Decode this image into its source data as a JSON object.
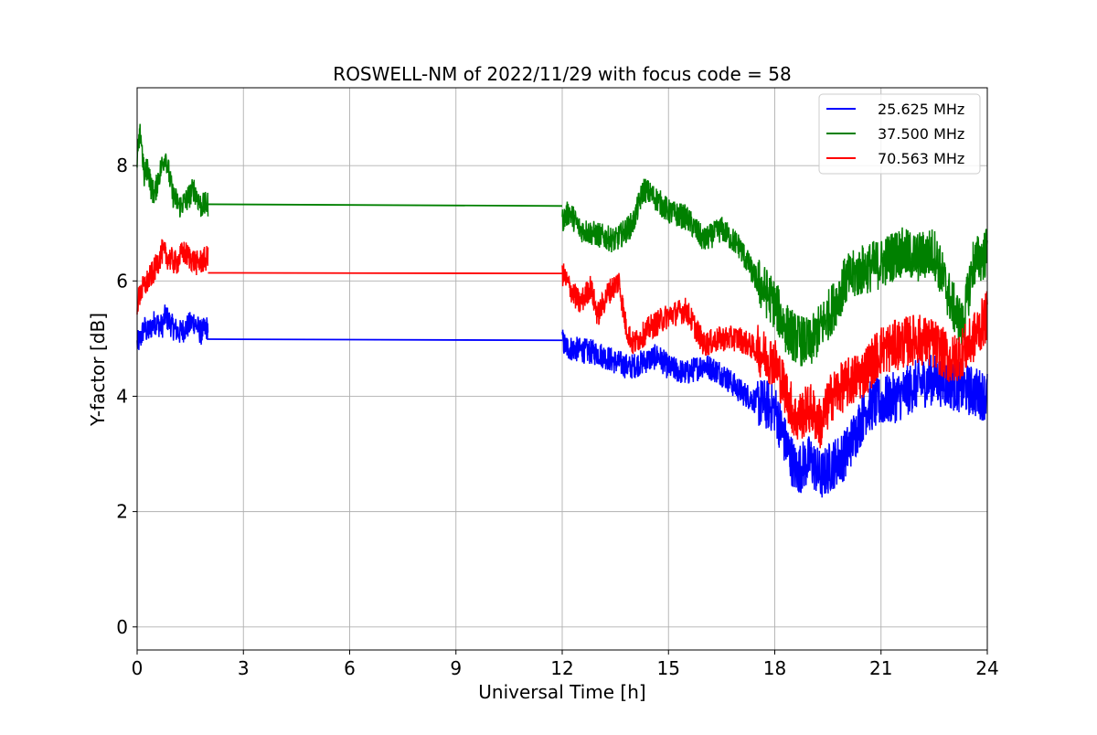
{
  "chart_data": {
    "type": "line",
    "title": "ROSWELL-NM of 2022/11/29 with focus code = 58",
    "xlabel": "Universal Time [h]",
    "ylabel": "Y-factor [dB]",
    "xlim": [
      0,
      24
    ],
    "ylim": [
      -0.4,
      9.35
    ],
    "xticks": [
      0,
      3,
      6,
      9,
      12,
      15,
      18,
      21,
      24
    ],
    "xtick_labels": [
      "0",
      "3",
      "6",
      "9",
      "12",
      "15",
      "18",
      "21",
      "24"
    ],
    "yticks": [
      0,
      2,
      4,
      6,
      8
    ],
    "ytick_labels": [
      "0",
      "2",
      "4",
      "6",
      "8"
    ],
    "grid": true,
    "legend_position": "top-right",
    "series": [
      {
        "name": "25.625 MHz",
        "color": "#0000ff",
        "x": [
          0,
          0.1,
          0.2,
          0.3,
          0.5,
          0.7,
          0.8,
          1.0,
          1.2,
          1.4,
          1.6,
          1.8,
          2.0,
          12.0,
          12.1,
          12.5,
          13.0,
          13.5,
          13.9,
          14.3,
          14.7,
          15.0,
          15.5,
          16.0,
          16.5,
          17.0,
          17.5,
          18.0,
          18.3,
          18.6,
          19.0,
          19.3,
          19.6,
          20.0,
          20.3,
          20.6,
          21.0,
          21.5,
          22.0,
          22.5,
          23.0,
          23.5,
          24.0
        ],
        "y": [
          4.9,
          5.0,
          5.2,
          5.1,
          5.3,
          5.2,
          5.4,
          5.2,
          5.1,
          5.2,
          5.3,
          5.1,
          5.2,
          4.97,
          4.85,
          4.8,
          4.75,
          4.6,
          4.5,
          4.6,
          4.7,
          4.5,
          4.4,
          4.55,
          4.4,
          4.1,
          3.9,
          3.8,
          3.2,
          2.7,
          2.9,
          2.6,
          2.8,
          3.0,
          3.4,
          3.8,
          3.9,
          4.0,
          4.2,
          4.3,
          4.2,
          4.1,
          4.0
        ],
        "flat_segment": {
          "x": [
            2.0,
            12.0
          ],
          "y": [
            4.99,
            4.97
          ]
        }
      },
      {
        "name": "37.500 MHz",
        "color": "#008000",
        "x": [
          0,
          0.1,
          0.2,
          0.3,
          0.4,
          0.5,
          0.6,
          0.8,
          1.0,
          1.2,
          1.4,
          1.6,
          1.8,
          2.0,
          12.0,
          12.2,
          12.5,
          13.0,
          13.5,
          14.0,
          14.3,
          14.7,
          15.0,
          15.5,
          16.0,
          16.5,
          17.0,
          17.5,
          18.0,
          18.3,
          18.6,
          19.0,
          19.3,
          19.6,
          20.0,
          20.5,
          21.0,
          21.5,
          22.0,
          22.5,
          23.0,
          23.3,
          23.6,
          24.0
        ],
        "y": [
          8.1,
          8.6,
          7.8,
          8.0,
          7.6,
          7.5,
          7.8,
          8.2,
          7.5,
          7.3,
          7.4,
          7.6,
          7.3,
          7.33,
          7.05,
          7.2,
          6.9,
          6.8,
          6.7,
          7.0,
          7.6,
          7.4,
          7.2,
          7.1,
          6.7,
          6.9,
          6.6,
          6.0,
          5.6,
          5.2,
          5.0,
          4.9,
          5.2,
          5.5,
          6.0,
          6.2,
          6.3,
          6.5,
          6.4,
          6.5,
          5.6,
          5.2,
          6.3,
          6.5
        ],
        "flat_segment": {
          "x": [
            2.0,
            12.0
          ],
          "y": [
            7.33,
            7.3
          ]
        }
      },
      {
        "name": "70.563 MHz",
        "color": "#ff0000",
        "x": [
          0,
          0.1,
          0.2,
          0.3,
          0.5,
          0.7,
          0.9,
          1.1,
          1.3,
          1.5,
          1.7,
          2.0,
          12.0,
          12.2,
          12.5,
          12.8,
          13.0,
          13.3,
          13.6,
          13.8,
          14.0,
          14.5,
          15.0,
          15.5,
          16.0,
          16.5,
          17.0,
          17.5,
          18.0,
          18.3,
          18.6,
          19.0,
          19.3,
          19.6,
          20.0,
          20.5,
          21.0,
          21.5,
          22.0,
          22.5,
          23.0,
          23.5,
          24.0
        ],
        "y": [
          5.6,
          5.8,
          5.9,
          6.0,
          6.2,
          6.5,
          6.4,
          6.3,
          6.5,
          6.4,
          6.3,
          6.4,
          6.14,
          5.9,
          5.6,
          5.9,
          5.4,
          5.8,
          6.0,
          5.2,
          4.9,
          5.2,
          5.4,
          5.5,
          4.9,
          5.0,
          5.0,
          4.8,
          4.6,
          4.1,
          3.6,
          3.8,
          3.5,
          4.0,
          4.2,
          4.4,
          4.8,
          4.9,
          5.0,
          4.9,
          4.6,
          4.9,
          5.4
        ],
        "flat_segment": {
          "x": [
            2.0,
            12.0
          ],
          "y": [
            6.14,
            6.13
          ]
        }
      }
    ]
  }
}
